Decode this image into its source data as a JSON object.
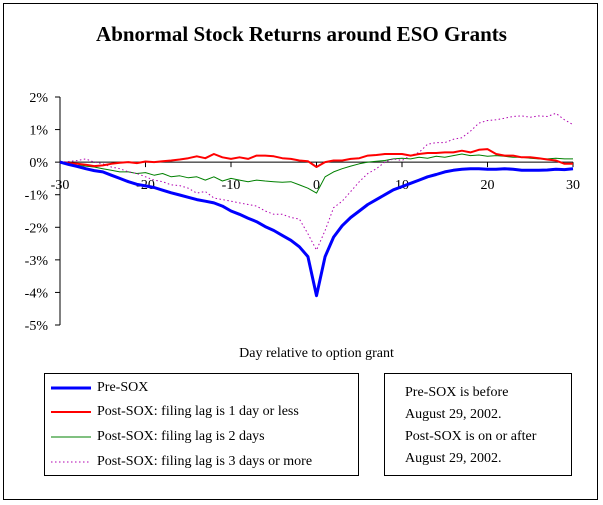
{
  "chart_data": {
    "type": "line",
    "title": "Abnormal Stock Returns around ESO Grants",
    "xlabel": "Day relative to option grant",
    "ylabel": "",
    "xlim": [
      -30,
      30
    ],
    "ylim": [
      -5,
      2
    ],
    "x_ticks": [
      "-30",
      "-20",
      "-10",
      "0",
      "10",
      "20",
      "30"
    ],
    "y_ticks": [
      "2%",
      "1%",
      "0%",
      "-1%",
      "-2%",
      "-3%",
      "-4%",
      "-5%"
    ],
    "grid": false,
    "legend_position": "bottom-left",
    "series": [
      {
        "name": "Pre-SOX",
        "color": "#0000ff",
        "style": "solid-thick",
        "points": [
          [
            -30,
            0
          ],
          [
            -29,
            -0.07
          ],
          [
            -28,
            -0.13
          ],
          [
            -27,
            -0.2
          ],
          [
            -26,
            -0.26
          ],
          [
            -25,
            -0.3
          ],
          [
            -24,
            -0.4
          ],
          [
            -23,
            -0.5
          ],
          [
            -22,
            -0.6
          ],
          [
            -21,
            -0.68
          ],
          [
            -20,
            -0.73
          ],
          [
            -19,
            -0.78
          ],
          [
            -18,
            -0.86
          ],
          [
            -17,
            -0.94
          ],
          [
            -16,
            -1.01
          ],
          [
            -15,
            -1.08
          ],
          [
            -14,
            -1.15
          ],
          [
            -13,
            -1.2
          ],
          [
            -12,
            -1.25
          ],
          [
            -11,
            -1.35
          ],
          [
            -10,
            -1.5
          ],
          [
            -9,
            -1.6
          ],
          [
            -8,
            -1.72
          ],
          [
            -7,
            -1.83
          ],
          [
            -6,
            -1.98
          ],
          [
            -5,
            -2.1
          ],
          [
            -4,
            -2.25
          ],
          [
            -3,
            -2.4
          ],
          [
            -2,
            -2.6
          ],
          [
            -1,
            -2.9
          ],
          [
            0,
            -4.1
          ],
          [
            1,
            -2.9
          ],
          [
            2,
            -2.3
          ],
          [
            3,
            -1.95
          ],
          [
            4,
            -1.7
          ],
          [
            5,
            -1.5
          ],
          [
            6,
            -1.3
          ],
          [
            7,
            -1.15
          ],
          [
            8,
            -1.0
          ],
          [
            9,
            -0.85
          ],
          [
            10,
            -0.75
          ],
          [
            11,
            -0.65
          ],
          [
            12,
            -0.55
          ],
          [
            13,
            -0.45
          ],
          [
            14,
            -0.38
          ],
          [
            15,
            -0.3
          ],
          [
            16,
            -0.25
          ],
          [
            17,
            -0.22
          ],
          [
            18,
            -0.2
          ],
          [
            19,
            -0.2
          ],
          [
            20,
            -0.22
          ],
          [
            21,
            -0.22
          ],
          [
            22,
            -0.2
          ],
          [
            23,
            -0.22
          ],
          [
            24,
            -0.25
          ],
          [
            25,
            -0.25
          ],
          [
            26,
            -0.25
          ],
          [
            27,
            -0.24
          ],
          [
            28,
            -0.22
          ],
          [
            29,
            -0.23
          ],
          [
            30,
            -0.2
          ]
        ]
      },
      {
        "name": "Post-SOX: filing lag is 1 day or less",
        "color": "#ff0000",
        "style": "solid",
        "points": [
          [
            -30,
            0
          ],
          [
            -29,
            -0.03
          ],
          [
            -28,
            -0.05
          ],
          [
            -27,
            -0.08
          ],
          [
            -26,
            -0.12
          ],
          [
            -25,
            -0.1
          ],
          [
            -24,
            -0.05
          ],
          [
            -23,
            -0.02
          ],
          [
            -22,
            0
          ],
          [
            -21,
            -0.03
          ],
          [
            -20,
            0.02
          ],
          [
            -19,
            0.0
          ],
          [
            -18,
            0.03
          ],
          [
            -17,
            0.05
          ],
          [
            -16,
            0.08
          ],
          [
            -15,
            0.12
          ],
          [
            -14,
            0.18
          ],
          [
            -13,
            0.12
          ],
          [
            -12,
            0.25
          ],
          [
            -11,
            0.15
          ],
          [
            -10,
            0.1
          ],
          [
            -9,
            0.15
          ],
          [
            -8,
            0.1
          ],
          [
            -7,
            0.2
          ],
          [
            -6,
            0.2
          ],
          [
            -5,
            0.18
          ],
          [
            -4,
            0.12
          ],
          [
            -3,
            0.1
          ],
          [
            -2,
            0.05
          ],
          [
            -1,
            0.03
          ],
          [
            0,
            -0.15
          ],
          [
            1,
            0.0
          ],
          [
            2,
            0.05
          ],
          [
            3,
            0.05
          ],
          [
            4,
            0.1
          ],
          [
            5,
            0.12
          ],
          [
            6,
            0.2
          ],
          [
            7,
            0.22
          ],
          [
            8,
            0.25
          ],
          [
            9,
            0.25
          ],
          [
            10,
            0.25
          ],
          [
            11,
            0.2
          ],
          [
            12,
            0.25
          ],
          [
            13,
            0.28
          ],
          [
            14,
            0.28
          ],
          [
            15,
            0.3
          ],
          [
            16,
            0.3
          ],
          [
            17,
            0.35
          ],
          [
            18,
            0.3
          ],
          [
            19,
            0.38
          ],
          [
            20,
            0.4
          ],
          [
            21,
            0.25
          ],
          [
            22,
            0.2
          ],
          [
            23,
            0.2
          ],
          [
            24,
            0.15
          ],
          [
            25,
            0.15
          ],
          [
            26,
            0.12
          ],
          [
            27,
            0.08
          ],
          [
            28,
            0.05
          ],
          [
            29,
            -0.05
          ],
          [
            30,
            -0.05
          ]
        ]
      },
      {
        "name": "Post-SOX: filing lag is 2 days",
        "color": "#008000",
        "style": "solid-thin",
        "points": [
          [
            -30,
            0
          ],
          [
            -29,
            -0.05
          ],
          [
            -28,
            -0.1
          ],
          [
            -27,
            -0.12
          ],
          [
            -26,
            -0.15
          ],
          [
            -25,
            -0.2
          ],
          [
            -24,
            -0.25
          ],
          [
            -23,
            -0.3
          ],
          [
            -22,
            -0.3
          ],
          [
            -21,
            -0.35
          ],
          [
            -20,
            -0.32
          ],
          [
            -19,
            -0.4
          ],
          [
            -18,
            -0.35
          ],
          [
            -17,
            -0.45
          ],
          [
            -16,
            -0.42
          ],
          [
            -15,
            -0.48
          ],
          [
            -14,
            -0.45
          ],
          [
            -13,
            -0.55
          ],
          [
            -12,
            -0.45
          ],
          [
            -11,
            -0.58
          ],
          [
            -10,
            -0.5
          ],
          [
            -9,
            -0.55
          ],
          [
            -8,
            -0.6
          ],
          [
            -7,
            -0.55
          ],
          [
            -6,
            -0.58
          ],
          [
            -5,
            -0.6
          ],
          [
            -4,
            -0.62
          ],
          [
            -3,
            -0.6
          ],
          [
            -2,
            -0.7
          ],
          [
            -1,
            -0.8
          ],
          [
            0,
            -0.95
          ],
          [
            1,
            -0.45
          ],
          [
            2,
            -0.3
          ],
          [
            3,
            -0.2
          ],
          [
            4,
            -0.12
          ],
          [
            5,
            -0.05
          ],
          [
            6,
            0.0
          ],
          [
            7,
            0.03
          ],
          [
            8,
            0.05
          ],
          [
            9,
            0.1
          ],
          [
            10,
            0.12
          ],
          [
            11,
            0.1
          ],
          [
            12,
            0.15
          ],
          [
            13,
            0.12
          ],
          [
            14,
            0.18
          ],
          [
            15,
            0.15
          ],
          [
            16,
            0.2
          ],
          [
            17,
            0.25
          ],
          [
            18,
            0.2
          ],
          [
            19,
            0.22
          ],
          [
            20,
            0.18
          ],
          [
            21,
            0.2
          ],
          [
            22,
            0.18
          ],
          [
            23,
            0.15
          ],
          [
            24,
            0.15
          ],
          [
            25,
            0.12
          ],
          [
            26,
            0.1
          ],
          [
            27,
            0.1
          ],
          [
            28,
            0.12
          ],
          [
            29,
            0.1
          ],
          [
            30,
            0.1
          ]
        ]
      },
      {
        "name": "Post-SOX: filing lag is 3 days or more",
        "color": "#b000b0",
        "style": "dotted",
        "points": [
          [
            -30,
            0
          ],
          [
            -29,
            0.02
          ],
          [
            -28,
            0.05
          ],
          [
            -27,
            0.1
          ],
          [
            -26,
            0.0
          ],
          [
            -25,
            -0.05
          ],
          [
            -24,
            -0.15
          ],
          [
            -23,
            -0.2
          ],
          [
            -22,
            -0.3
          ],
          [
            -21,
            -0.35
          ],
          [
            -20,
            -0.45
          ],
          [
            -19,
            -0.55
          ],
          [
            -18,
            -0.6
          ],
          [
            -17,
            -0.7
          ],
          [
            -16,
            -0.72
          ],
          [
            -15,
            -0.8
          ],
          [
            -14,
            -0.95
          ],
          [
            -13,
            -0.9
          ],
          [
            -12,
            -1.1
          ],
          [
            -11,
            -1.15
          ],
          [
            -10,
            -1.2
          ],
          [
            -9,
            -1.25
          ],
          [
            -8,
            -1.3
          ],
          [
            -7,
            -1.35
          ],
          [
            -6,
            -1.5
          ],
          [
            -5,
            -1.6
          ],
          [
            -4,
            -1.6
          ],
          [
            -3,
            -1.7
          ],
          [
            -2,
            -1.75
          ],
          [
            -1,
            -2.2
          ],
          [
            0,
            -2.7
          ],
          [
            1,
            -2.1
          ],
          [
            2,
            -1.4
          ],
          [
            3,
            -1.2
          ],
          [
            4,
            -0.9
          ],
          [
            5,
            -0.6
          ],
          [
            6,
            -0.35
          ],
          [
            7,
            -0.2
          ],
          [
            8,
            0.0
          ],
          [
            9,
            0.1
          ],
          [
            10,
            0.05
          ],
          [
            11,
            0.2
          ],
          [
            12,
            0.3
          ],
          [
            13,
            0.55
          ],
          [
            14,
            0.6
          ],
          [
            15,
            0.6
          ],
          [
            16,
            0.7
          ],
          [
            17,
            0.75
          ],
          [
            18,
            0.95
          ],
          [
            19,
            1.2
          ],
          [
            20,
            1.28
          ],
          [
            21,
            1.3
          ],
          [
            22,
            1.35
          ],
          [
            23,
            1.4
          ],
          [
            24,
            1.42
          ],
          [
            25,
            1.38
          ],
          [
            26,
            1.42
          ],
          [
            27,
            1.4
          ],
          [
            28,
            1.5
          ],
          [
            29,
            1.3
          ],
          [
            30,
            1.15
          ]
        ]
      }
    ]
  },
  "note": {
    "lines": [
      "Pre-SOX is before",
      "August 29, 2002.",
      "Post-SOX is on or after",
      "August 29, 2002."
    ]
  }
}
